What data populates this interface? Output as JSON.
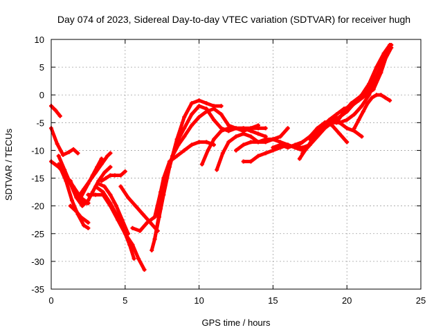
{
  "chart_data": {
    "type": "line",
    "title": "Day 074 of 2023, Sidereal Day-to-day VTEC variation (SDTVAR) for receiver hugh",
    "xlabel": "GPS time / hours",
    "ylabel": "SDTVAR / TECUs",
    "xlim": [
      0,
      25
    ],
    "ylim": [
      -35,
      10
    ],
    "xticks": [
      0,
      5,
      10,
      15,
      20,
      25
    ],
    "yticks": [
      10,
      5,
      0,
      -5,
      -10,
      -15,
      -20,
      -25,
      -30,
      -35
    ],
    "grid": true,
    "legend": "none",
    "series_color": "#ff0000",
    "series": [
      {
        "x": [
          0.0,
          0.3,
          0.6
        ],
        "y": [
          -2.0,
          -2.8,
          -3.8
        ]
      },
      {
        "x": [
          0.0,
          0.4,
          0.8,
          1.2,
          1.5,
          1.8
        ],
        "y": [
          -6.0,
          -8.8,
          -10.8,
          -10.3,
          -9.8,
          -10.5
        ]
      },
      {
        "x": [
          0.0,
          0.5,
          1.0,
          1.5,
          2.0,
          2.5
        ],
        "y": [
          -12.0,
          -13.0,
          -14.5,
          -16.5,
          -18.5,
          -19.5
        ]
      },
      {
        "x": [
          0.5,
          0.9,
          1.3,
          1.7,
          2.1,
          2.5
        ],
        "y": [
          -11.0,
          -13.5,
          -16.0,
          -18.5,
          -20.0,
          -19.0
        ]
      },
      {
        "x": [
          1.3,
          1.7,
          2.1,
          2.5
        ],
        "y": [
          -15.5,
          -18.0,
          -19.5,
          -19.5
        ]
      },
      {
        "x": [
          0.5,
          1.0,
          1.4,
          1.8,
          2.2,
          2.5
        ],
        "y": [
          -12.5,
          -15.5,
          -19.0,
          -21.5,
          -23.5,
          -24.0
        ]
      },
      {
        "x": [
          1.3,
          1.7,
          2.0,
          2.5
        ],
        "y": [
          -20.0,
          -21.0,
          -22.0,
          -23.0
        ]
      },
      {
        "x": [
          1.8,
          2.2,
          2.6,
          3.0,
          3.4,
          3.8,
          4.0
        ],
        "y": [
          -18.5,
          -17.0,
          -15.5,
          -14.0,
          -12.5,
          -11.0,
          -10.5
        ]
      },
      {
        "x": [
          2.0,
          2.5,
          2.8,
          3.1,
          3.4
        ],
        "y": [
          -18.5,
          -16.0,
          -14.5,
          -13.0,
          -11.5
        ]
      },
      {
        "x": [
          2.4,
          2.8,
          3.2,
          3.6,
          4.0
        ],
        "y": [
          -19.5,
          -17.5,
          -15.5,
          -14.0,
          -13.0
        ]
      },
      {
        "x": [
          3.4,
          3.7,
          4.0,
          4.3,
          4.7,
          5.0
        ],
        "y": [
          -15.5,
          -15.0,
          -14.5,
          -14.5,
          -14.5,
          -13.8
        ]
      },
      {
        "x": [
          2.5,
          3.0,
          3.5,
          4.0,
          4.5,
          5.0,
          5.3,
          5.6
        ],
        "y": [
          -18.0,
          -18.0,
          -18.0,
          -20.0,
          -22.5,
          -25.0,
          -27.0,
          -29.5
        ]
      },
      {
        "x": [
          3.0,
          3.5,
          4.0,
          4.5,
          5.0,
          5.5,
          5.9,
          6.3
        ],
        "y": [
          -16.5,
          -17.5,
          -19.5,
          -22.0,
          -25.0,
          -27.0,
          -29.5,
          -31.5
        ]
      },
      {
        "x": [
          3.2,
          3.6,
          4.0,
          4.4,
          4.8,
          5.2
        ],
        "y": [
          -16.0,
          -16.5,
          -18.0,
          -20.0,
          -22.5,
          -25.0
        ]
      },
      {
        "x": [
          4.7,
          5.2,
          5.7,
          6.2,
          6.7,
          7.2
        ],
        "y": [
          -16.5,
          -18.5,
          -20.0,
          -21.5,
          -23.0,
          -24.5
        ]
      },
      {
        "x": [
          5.5,
          6.0,
          6.5,
          7.0,
          7.4
        ],
        "y": [
          -24.0,
          -24.5,
          -23.0,
          -22.0,
          -20.5
        ]
      },
      {
        "x": [
          6.8,
          7.0,
          7.3,
          7.6,
          8.0,
          8.5,
          9.0,
          9.5,
          10.0,
          10.5,
          11.0,
          11.5
        ],
        "y": [
          -28.0,
          -26.0,
          -22.0,
          -18.0,
          -13.0,
          -8.0,
          -4.0,
          -1.5,
          -1.0,
          -1.5,
          -2.0,
          -2.0
        ]
      },
      {
        "x": [
          7.0,
          7.4,
          7.8,
          8.2,
          8.6,
          9.0,
          9.5,
          10.0,
          10.5,
          11.0,
          11.5,
          12.0,
          12.5,
          13.0,
          13.5,
          14.0,
          14.5
        ],
        "y": [
          -26.0,
          -20.0,
          -15.0,
          -11.0,
          -8.0,
          -6.0,
          -3.5,
          -2.0,
          -2.5,
          -4.5,
          -6.0,
          -6.5,
          -6.0,
          -6.0,
          -6.0,
          -6.0,
          -6.0
        ]
      },
      {
        "x": [
          7.0,
          7.4,
          7.8,
          8.2,
          8.6,
          9.0,
          9.5,
          10.0,
          10.5,
          11.0,
          11.5,
          12.0,
          12.5,
          13.0,
          13.5,
          14.0,
          14.5
        ],
        "y": [
          -22.0,
          -17.5,
          -14.0,
          -11.0,
          -9.0,
          -7.5,
          -5.5,
          -4.0,
          -3.0,
          -2.5,
          -3.5,
          -5.5,
          -6.0,
          -6.0,
          -6.5,
          -7.0,
          -7.5
        ]
      },
      {
        "x": [
          7.2,
          7.6,
          8.0,
          8.5,
          9.0,
          9.5,
          10.0,
          10.5,
          11.0
        ],
        "y": [
          -20.0,
          -15.0,
          -12.0,
          -11.0,
          -10.0,
          -9.0,
          -8.5,
          -8.5,
          -9.0
        ]
      },
      {
        "x": [
          10.2,
          10.6,
          11.0,
          11.5,
          12.0,
          12.5,
          13.0,
          13.5,
          14.0
        ],
        "y": [
          -12.5,
          -10.0,
          -8.0,
          -6.5,
          -6.0,
          -6.0,
          -6.5,
          -6.0,
          -5.5
        ]
      },
      {
        "x": [
          11.2,
          11.6,
          12.0,
          12.5,
          13.0,
          13.5,
          14.0,
          14.5,
          15.0,
          15.5,
          16.0
        ],
        "y": [
          -13.5,
          -10.5,
          -8.5,
          -7.5,
          -7.0,
          -7.5,
          -8.5,
          -8.5,
          -8.0,
          -7.5,
          -6.0
        ]
      },
      {
        "x": [
          12.5,
          13.0,
          13.5,
          14.0,
          14.5,
          15.0,
          15.5,
          16.0,
          16.5,
          17.0
        ],
        "y": [
          -10.0,
          -9.0,
          -8.5,
          -8.5,
          -8.0,
          -8.0,
          -8.5,
          -9.0,
          -9.5,
          -10.0
        ]
      },
      {
        "x": [
          13.0,
          13.5,
          14.0,
          14.5,
          15.0,
          15.5,
          16.0,
          16.5,
          17.0,
          17.5
        ],
        "y": [
          -12.0,
          -12.0,
          -11.0,
          -10.5,
          -10.0,
          -9.5,
          -9.0,
          -9.5,
          -9.5,
          -9.0
        ]
      },
      {
        "x": [
          15.0,
          15.5,
          16.0,
          16.5,
          17.0,
          17.5,
          18.0,
          18.5,
          19.0,
          19.5,
          20.0
        ],
        "y": [
          -9.5,
          -9.0,
          -9.5,
          -9.0,
          -8.5,
          -7.5,
          -6.0,
          -5.0,
          -5.5,
          -7.0,
          -8.5
        ]
      },
      {
        "x": [
          16.5,
          17.0,
          17.5,
          18.0,
          18.5,
          19.0,
          19.5,
          20.0,
          20.5,
          21.0,
          21.5,
          22.0,
          22.5,
          23.0
        ],
        "y": [
          -9.5,
          -8.5,
          -7.5,
          -6.5,
          -5.5,
          -5.0,
          -5.0,
          -4.5,
          -3.5,
          -2.0,
          0.0,
          3.0,
          6.0,
          8.5
        ]
      },
      {
        "x": [
          17.0,
          17.5,
          18.0,
          18.5,
          19.0,
          19.5,
          20.0,
          20.5,
          21.0,
          21.5,
          22.0,
          22.5,
          23.0
        ],
        "y": [
          -10.5,
          -9.0,
          -7.5,
          -6.0,
          -5.0,
          -4.0,
          -3.0,
          -1.5,
          -0.5,
          1.0,
          3.5,
          6.5,
          9.0
        ]
      },
      {
        "x": [
          16.8,
          17.3,
          17.8,
          18.3,
          18.8,
          19.3,
          19.8,
          20.3,
          20.8,
          21.3,
          21.8,
          22.3,
          22.8
        ],
        "y": [
          -11.5,
          -9.5,
          -7.5,
          -6.0,
          -4.5,
          -3.5,
          -2.5,
          -2.0,
          -1.0,
          0.0,
          2.0,
          5.0,
          8.0
        ]
      },
      {
        "x": [
          17.5,
          18.0,
          18.5,
          19.0,
          19.5,
          20.0,
          20.5,
          21.0
        ],
        "y": [
          -8.0,
          -6.5,
          -5.0,
          -4.5,
          -5.0,
          -6.0,
          -6.5,
          -7.5
        ]
      },
      {
        "x": [
          18.5,
          19.0,
          19.5,
          20.0,
          20.5,
          21.0,
          21.5,
          22.0,
          22.5,
          22.9
        ],
        "y": [
          -5.0,
          -4.5,
          -4.0,
          -3.0,
          -1.5,
          0.0,
          2.0,
          5.0,
          7.5,
          9.0
        ]
      },
      {
        "x": [
          19.3,
          19.8,
          20.3,
          20.8,
          21.3,
          21.8,
          22.3,
          22.8
        ],
        "y": [
          -5.0,
          -3.0,
          -1.5,
          -0.5,
          0.0,
          1.0,
          4.0,
          8.0
        ]
      },
      {
        "x": [
          20.5,
          20.8,
          21.1,
          21.4,
          21.7,
          22.0,
          22.3,
          22.6,
          22.9
        ],
        "y": [
          -6.0,
          -4.5,
          -3.0,
          -1.5,
          -0.5,
          0.0,
          0.0,
          -0.5,
          -1.0
        ]
      }
    ]
  }
}
